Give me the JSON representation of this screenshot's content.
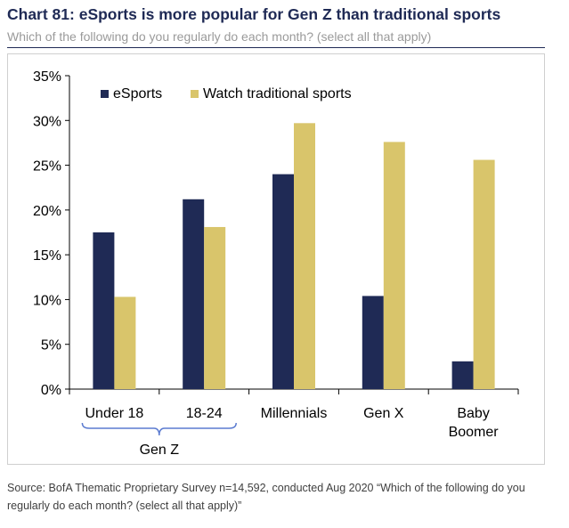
{
  "chart_data": {
    "type": "bar",
    "title": "Chart 81: eSports is more popular for Gen Z than traditional sports",
    "subtitle": "Which of the following do you regularly do each month? (select all that apply)",
    "categories": [
      "Under 18",
      "18-24",
      "Millennials",
      "Gen X",
      "Baby Boomer"
    ],
    "category_lines": [
      [
        "Under 18"
      ],
      [
        "18-24"
      ],
      [
        "Millennials"
      ],
      [
        "Gen X"
      ],
      [
        "Baby",
        "Boomer"
      ]
    ],
    "group_label": "Gen Z",
    "series": [
      {
        "name": "eSports",
        "color": "#1f2a55",
        "values": [
          17.5,
          21.2,
          24.0,
          10.4,
          3.1
        ]
      },
      {
        "name": "Watch traditional sports",
        "color": "#d9c56b",
        "values": [
          10.3,
          18.1,
          29.7,
          27.6,
          25.6
        ]
      }
    ],
    "ylim": [
      0,
      35
    ],
    "yticks": [
      0,
      5,
      10,
      15,
      20,
      25,
      30,
      35
    ],
    "ytick_labels": [
      "0%",
      "5%",
      "10%",
      "15%",
      "20%",
      "25%",
      "30%",
      "35%"
    ],
    "xlabel": "",
    "ylabel": "",
    "grid": false,
    "legend_position": "top-left"
  },
  "source": "Source: BofA Thematic Proprietary Survey n=14,592, conducted Aug 2020 “Which of the following do you regularly do each month? (select all that apply)”"
}
